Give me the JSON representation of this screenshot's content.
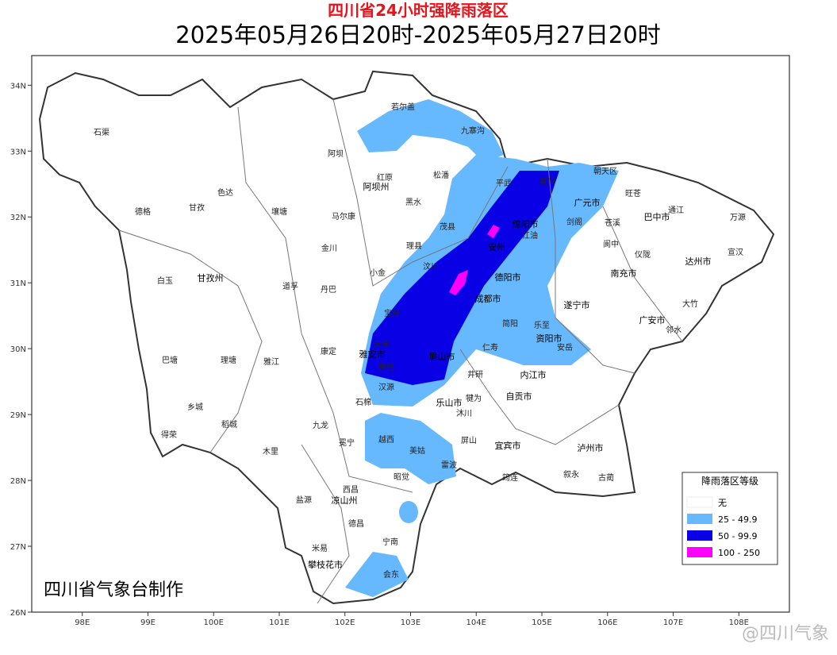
{
  "title": "四川省24小时强降雨落区",
  "subtitle": "2025年05月26日20时-2025年05月27日20时",
  "credit": "四川省气象台制作",
  "watermark": "@四川气象",
  "map": {
    "xlim": [
      97.23,
      108.77
    ],
    "ylim": [
      26,
      34.45
    ],
    "lon_ticks": [
      {
        "value": 98,
        "label": "98E"
      },
      {
        "value": 99,
        "label": "99E"
      },
      {
        "value": 100,
        "label": "100E"
      },
      {
        "value": 101,
        "label": "101E"
      },
      {
        "value": 102,
        "label": "102E"
      },
      {
        "value": 103,
        "label": "103E"
      },
      {
        "value": 104,
        "label": "104E"
      },
      {
        "value": 105,
        "label": "105E"
      },
      {
        "value": 106,
        "label": "106E"
      },
      {
        "value": 107,
        "label": "107E"
      },
      {
        "value": 108,
        "label": "108E"
      }
    ],
    "lat_ticks": [
      {
        "value": 26,
        "label": "26N"
      },
      {
        "value": 27,
        "label": "27N"
      },
      {
        "value": 28,
        "label": "28N"
      },
      {
        "value": 29,
        "label": "29N"
      },
      {
        "value": 30,
        "label": "30N"
      },
      {
        "value": 31,
        "label": "31N"
      },
      {
        "value": 32,
        "label": "32N"
      },
      {
        "value": 33,
        "label": "33N"
      },
      {
        "value": 34,
        "label": "34N"
      }
    ],
    "places": [
      "石渠",
      "德格",
      "甘孜",
      "色达",
      "白玉",
      "甘孜州",
      "巴塘",
      "理塘",
      "乡城",
      "稻城",
      "得荣",
      "阿坝",
      "若尔盖",
      "九寨沟",
      "红原",
      "阿坝州",
      "松潘",
      "马尔康",
      "黑水",
      "壤塘",
      "金川",
      "小金",
      "理县",
      "茂县",
      "汶川",
      "丹巴",
      "道孚",
      "康定",
      "雅江",
      "九龙",
      "木里",
      "盐源",
      "凉山州",
      "西昌",
      "德昌",
      "宁南",
      "米易",
      "攀枝花市",
      "会东",
      "广元市",
      "巴中市",
      "达州市",
      "南充市",
      "绵阳市",
      "德阳市",
      "成都市",
      "遂宁市",
      "资阳市",
      "眉山市",
      "雅安市",
      "乐山市",
      "内江市",
      "自贡市",
      "宜宾市",
      "泸州市",
      "广安市",
      "万源",
      "宣汉",
      "大竹",
      "邻水",
      "朝天区",
      "旺苍",
      "通江",
      "剑阁",
      "苍溪",
      "阆中",
      "仪陇",
      "平武",
      "青川",
      "江油",
      "安州",
      "汉源",
      "石棉",
      "冕宁",
      "越西",
      "美姑",
      "昭觉",
      "雷波",
      "屏山",
      "筠连",
      "古蔺",
      "叙永",
      "安岳",
      "乐至",
      "简阳",
      "仁寿",
      "宝兴",
      "天全",
      "荥经",
      "沐川",
      "犍为",
      "井研"
    ]
  },
  "legend": {
    "title": "降雨落区等级",
    "items": [
      {
        "label": "无",
        "color": "#ffffff"
      },
      {
        "label": "25 - 49.9",
        "color": "#66b8ff"
      },
      {
        "label": "50 - 99.9",
        "color": "#0a00e6"
      },
      {
        "label": "100 - 250",
        "color": "#ff00ff"
      }
    ]
  }
}
